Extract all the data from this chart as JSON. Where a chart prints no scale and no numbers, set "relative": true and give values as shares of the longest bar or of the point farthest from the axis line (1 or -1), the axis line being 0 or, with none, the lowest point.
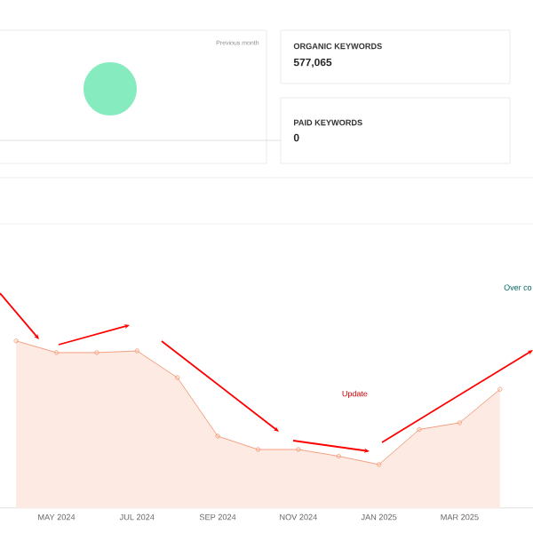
{
  "chart_data": [
    {
      "type": "other",
      "annotations": [
        "Previous month",
        "ORGANIC KEYWORDS",
        "577,065",
        "PAID KEYWORDS",
        "0"
      ]
    },
    {
      "type": "area",
      "relative": true,
      "color": "#f4a07f",
      "marker": "circle",
      "categories": [
        null,
        "MAY 2024",
        null,
        "JUL 2024",
        null,
        "SEP 2024",
        null,
        "NOV 2024",
        null,
        "JAN 2025",
        null,
        "MAR 2025",
        null
      ],
      "values": [
        1,
        0.93,
        0.93,
        0.94,
        0.78,
        0.43,
        0.35,
        0.35,
        0.31,
        0.26,
        0.47,
        0.51,
        0.71
      ],
      "annotations": [
        "Update",
        "Over co"
      ]
    }
  ]
}
